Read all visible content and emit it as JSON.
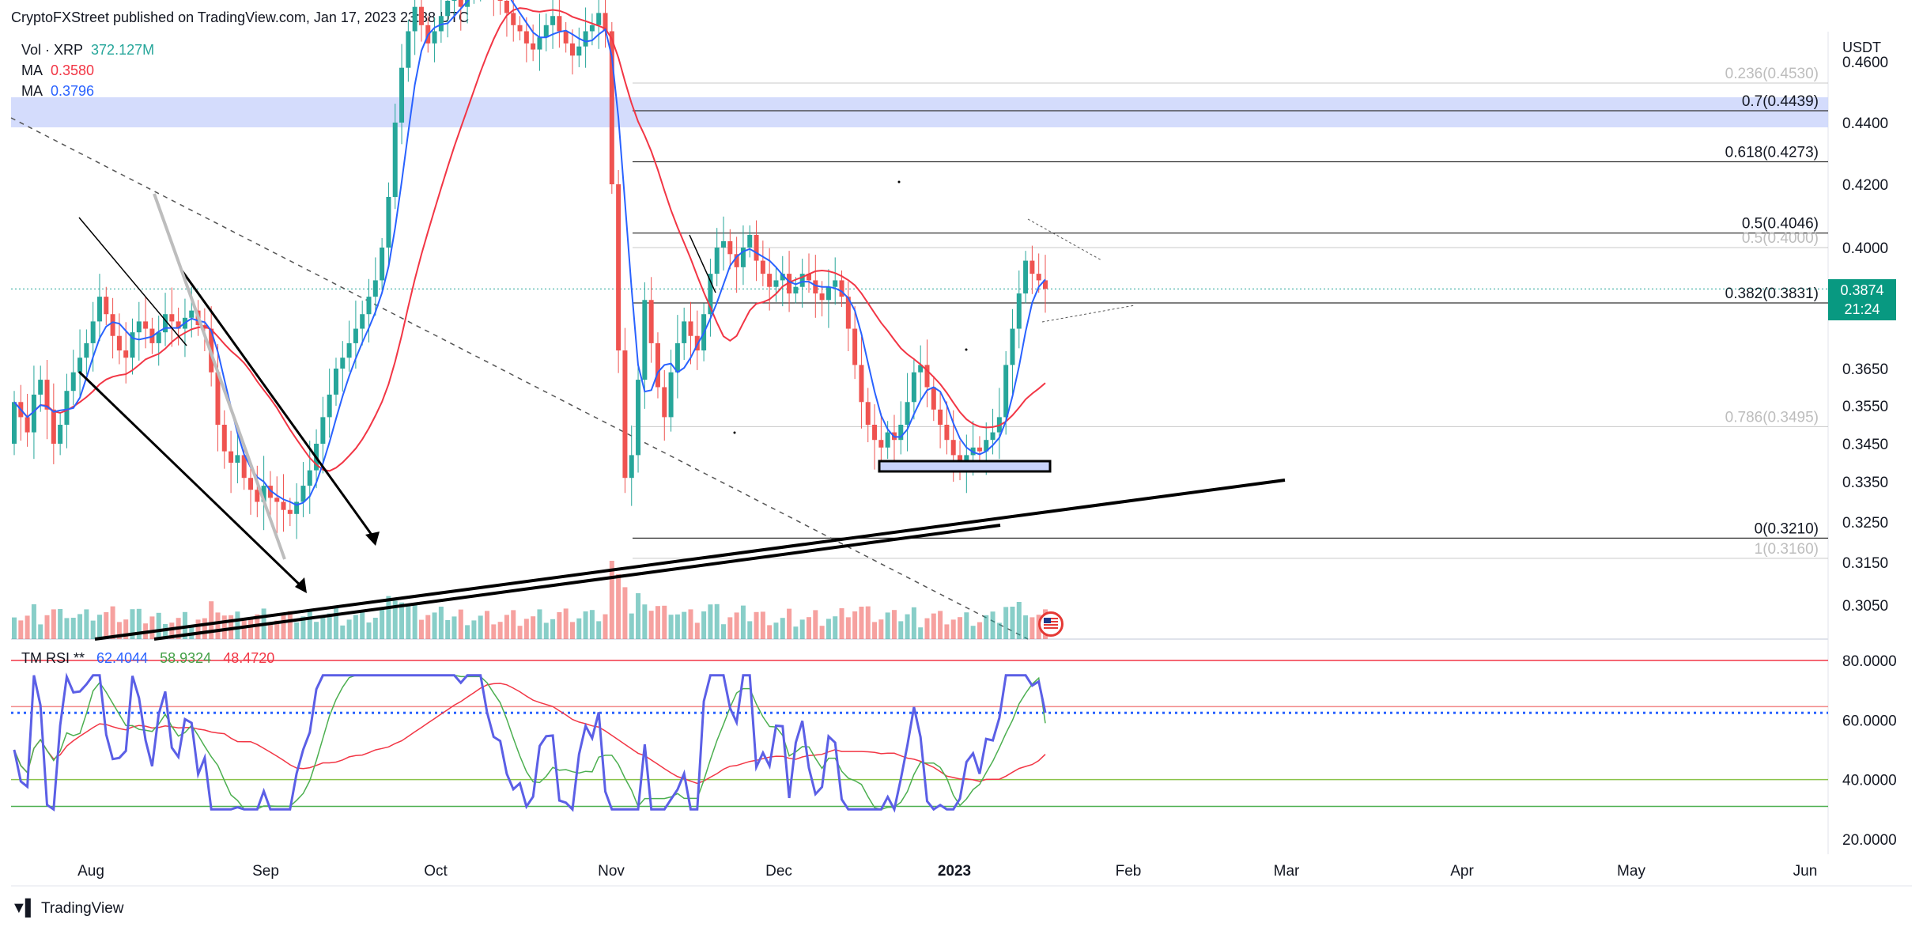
{
  "header": {
    "published": "CryptoFXStreet published on TradingView.com, Jan 17, 2023 23:38 UTC"
  },
  "legend": {
    "vol_label": "Vol · XRP",
    "vol_value": "372.127M",
    "ma1_label": "MA",
    "ma1_value": "0.3580",
    "ma2_label": "MA",
    "ma2_value": "0.3796"
  },
  "rsi_legend": {
    "label": "TM RSI **",
    "v1": "62.4044",
    "v2": "58.9324",
    "v3": "48.4720"
  },
  "price_axis": {
    "currency": "USDT"
  },
  "last_price": {
    "price": "0.3874",
    "countdown": "21:24"
  },
  "footer": {
    "brand": "TradingView"
  },
  "colors": {
    "up": "#26a69a",
    "down": "#ef5350",
    "ma_fast": "#2962ff",
    "ma_slow": "#f23645",
    "fib_zone": "#c9d3fb",
    "rsi": "#5b5fe6",
    "rsi_signal": "#4caf50",
    "rsi_slow": "#f23645",
    "rsi_level": "#8bc34a"
  },
  "chart_data": [
    {
      "type": "candlestick",
      "pair": "XRP/USDT",
      "x_ticks": [
        "Aug",
        "Sep",
        "Oct",
        "Nov",
        "Dec",
        "2023",
        "Feb",
        "Mar",
        "Apr",
        "May",
        "Jun"
      ],
      "y_ticks": [
        0.46,
        0.44,
        0.42,
        0.4,
        0.365,
        0.355,
        0.345,
        0.335,
        0.325,
        0.315,
        0.305
      ],
      "fibonacci": [
        {
          "label": "0.236(0.4530)",
          "value": 0.453,
          "faded": true
        },
        {
          "label": "0.7(0.4439)",
          "value": 0.4439,
          "faded": false
        },
        {
          "label": "0.618(0.4273)",
          "value": 0.4273,
          "faded": false
        },
        {
          "label": "0.5(0.4046)",
          "value": 0.4046,
          "faded": false
        },
        {
          "label": "0.5(0.4000)",
          "value": 0.4,
          "faded": true
        },
        {
          "label": "0.382(0.3831)",
          "value": 0.3831,
          "faded": false
        },
        {
          "label": "0.786(0.3495)",
          "value": 0.3495,
          "faded": true
        },
        {
          "label": "0(0.3210)",
          "value": 0.321,
          "faded": false
        },
        {
          "label": "1(0.3160)",
          "value": 0.316,
          "faded": true
        }
      ],
      "last_price": 0.3874
    },
    {
      "type": "line",
      "title": "TM RSI",
      "y_ticks": [
        80,
        60,
        40,
        20
      ],
      "levels": [
        80,
        64.5,
        40,
        31
      ],
      "current_values": [
        62.4044,
        58.9324,
        48.472
      ]
    }
  ]
}
